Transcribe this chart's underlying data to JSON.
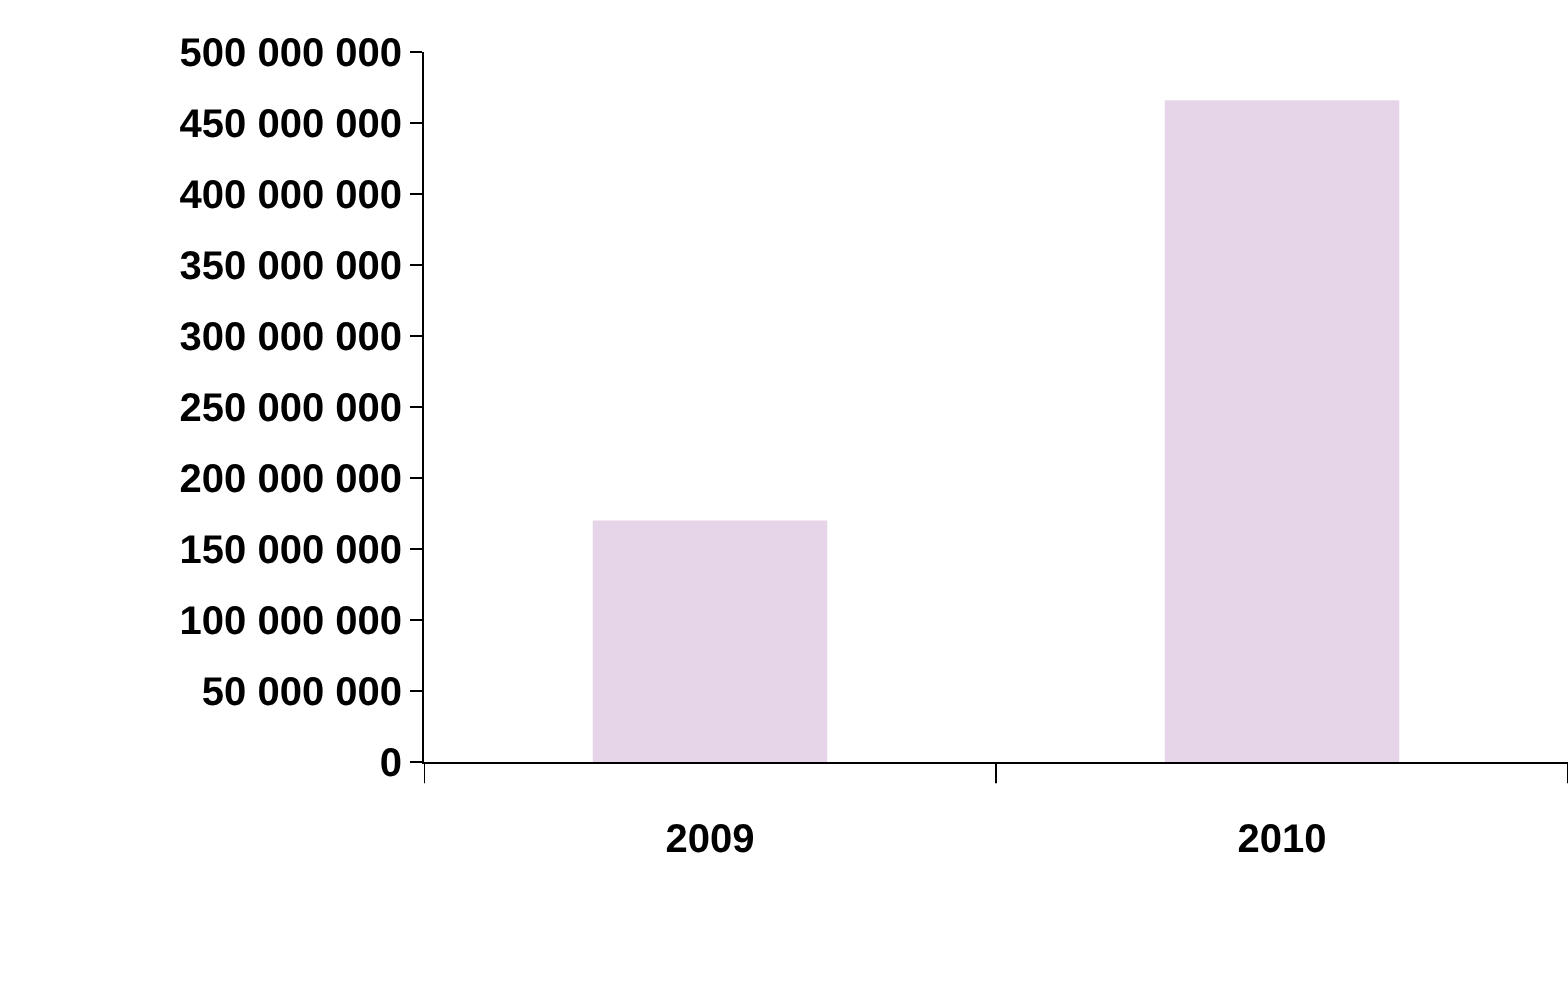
{
  "chart_data": {
    "type": "bar",
    "categories": [
      "2009",
      "2010"
    ],
    "series": [
      {
        "color": "#e6d4e8",
        "values": [
          170000000,
          466000000
        ]
      }
    ],
    "ylim": [
      0,
      500000000
    ],
    "yticks": [
      {
        "value": 0,
        "label": "0"
      },
      {
        "value": 50000000,
        "label": "50 000 000"
      },
      {
        "value": 100000000,
        "label": "100 000 000"
      },
      {
        "value": 150000000,
        "label": "150 000 000"
      },
      {
        "value": 200000000,
        "label": "200 000 000"
      },
      {
        "value": 250000000,
        "label": "250 000 000"
      },
      {
        "value": 300000000,
        "label": "300 000 000"
      },
      {
        "value": 350000000,
        "label": "350 000 000"
      },
      {
        "value": 400000000,
        "label": "400 000 000"
      },
      {
        "value": 450000000,
        "label": "450 000 000"
      },
      {
        "value": 500000000,
        "label": "500 000 000"
      }
    ],
    "grid": false
  }
}
